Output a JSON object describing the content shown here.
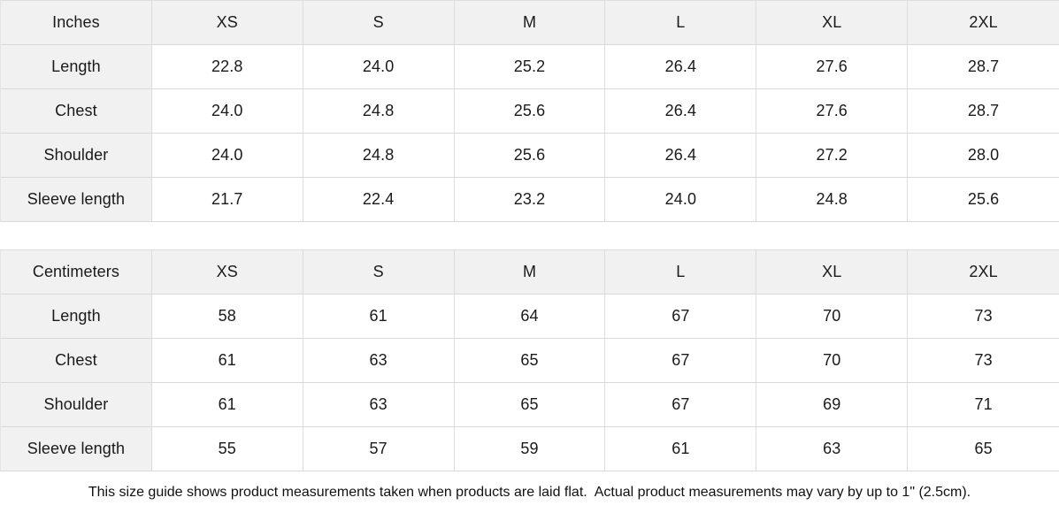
{
  "colors": {
    "header_and_label_bg": "#f1f1f1",
    "row_border": "#d9d9d9",
    "column_border": "#dcdcdc",
    "text": "#1a1a1a",
    "background": "#ffffff"
  },
  "tables": [
    {
      "unit_label": "Inches",
      "columns": [
        "XS",
        "S",
        "M",
        "L",
        "XL",
        "2XL"
      ],
      "rows": [
        {
          "label": "Length",
          "values": [
            "22.8",
            "24.0",
            "25.2",
            "26.4",
            "27.6",
            "28.7"
          ]
        },
        {
          "label": "Chest",
          "values": [
            "24.0",
            "24.8",
            "25.6",
            "26.4",
            "27.6",
            "28.7"
          ]
        },
        {
          "label": "Shoulder",
          "values": [
            "24.0",
            "24.8",
            "25.6",
            "26.4",
            "27.2",
            "28.0"
          ]
        },
        {
          "label": "Sleeve length",
          "values": [
            "21.7",
            "22.4",
            "23.2",
            "24.0",
            "24.8",
            "25.6"
          ]
        }
      ]
    },
    {
      "unit_label": "Centimeters",
      "columns": [
        "XS",
        "S",
        "M",
        "L",
        "XL",
        "2XL"
      ],
      "rows": [
        {
          "label": "Length",
          "values": [
            "58",
            "61",
            "64",
            "67",
            "70",
            "73"
          ]
        },
        {
          "label": "Chest",
          "values": [
            "61",
            "63",
            "65",
            "67",
            "70",
            "73"
          ]
        },
        {
          "label": "Shoulder",
          "values": [
            "61",
            "63",
            "65",
            "67",
            "69",
            "71"
          ]
        },
        {
          "label": "Sleeve length",
          "values": [
            "55",
            "57",
            "59",
            "61",
            "63",
            "65"
          ]
        }
      ]
    }
  ],
  "footer": {
    "note": "This size guide shows product measurements taken when products are laid flat.  Actual product measurements may vary by up to 1\" (2.5cm)."
  }
}
